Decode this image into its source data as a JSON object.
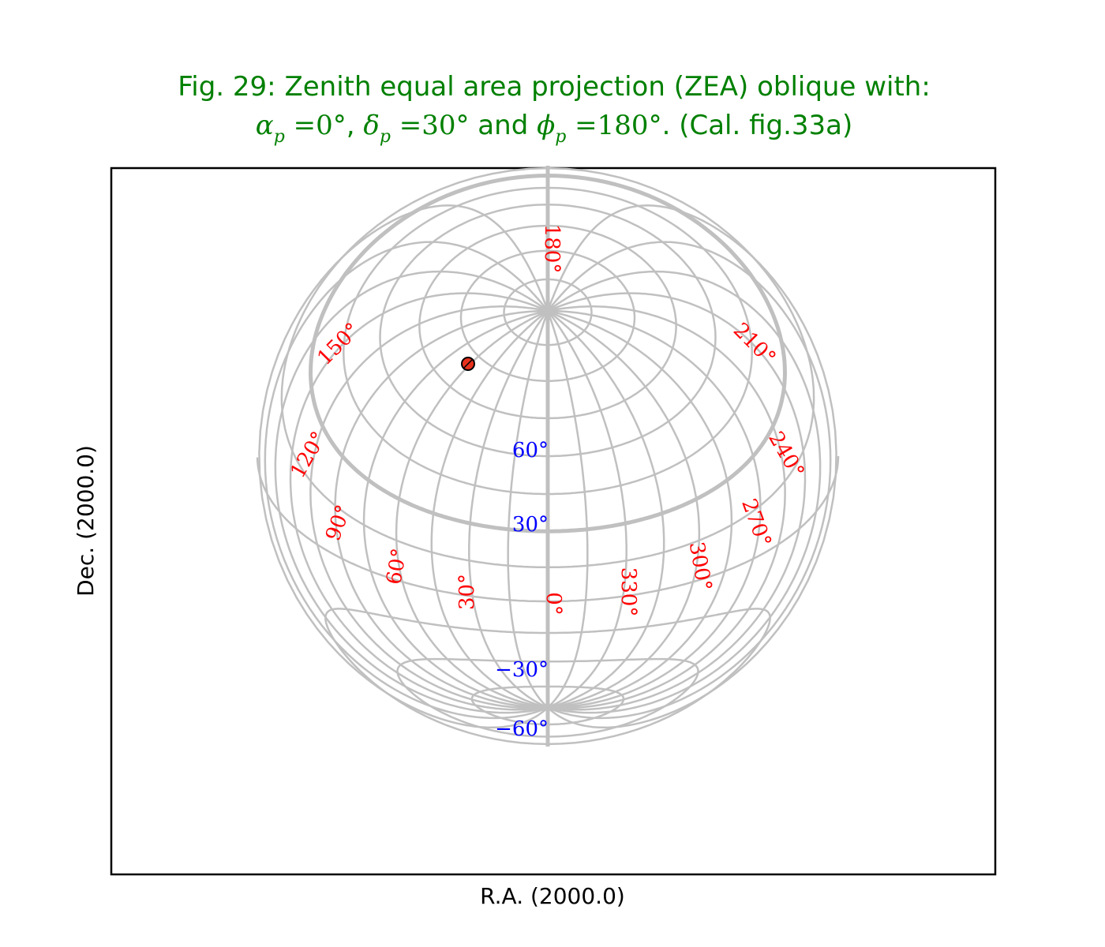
{
  "title": {
    "line1": "Fig. 29: Zenith equal area projection (ZEA) oblique with:",
    "alpha_sym": "α",
    "alpha_eq": " =0°",
    "sep": ", ",
    "delta_sym": "δ",
    "delta_eq": " =30°",
    "and_text": " and ",
    "phi_sym": "ϕ",
    "phi_eq": " =180°",
    "ref": ". (Cal. fig.33a)",
    "subscript": "p"
  },
  "axes": {
    "xlabel": "R.A. (2000.0)",
    "ylabel": "Dec. (2000.0)"
  },
  "labels": {
    "ra": [
      "0°",
      "30°",
      "60°",
      "90°",
      "120°",
      "150°",
      "180°",
      "210°",
      "240°",
      "270°",
      "300°",
      "330°"
    ],
    "dec": [
      "60°",
      "30°",
      "−30°",
      "−60°"
    ]
  },
  "colors": {
    "title": "#008000",
    "ra_labels": "#ff0000",
    "dec_labels": "#0000ff",
    "graticule": "#c0c0c0",
    "marker": "#e8301c"
  },
  "projection": {
    "type": "ZEA",
    "alpha_p": 0,
    "delta_p": 30,
    "phi_p": 180
  }
}
